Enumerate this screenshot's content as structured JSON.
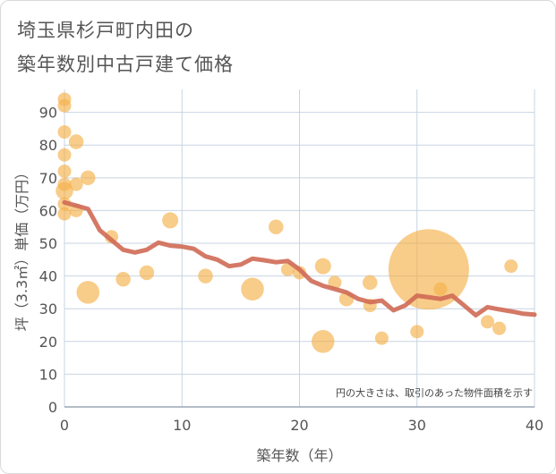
{
  "title_lines": [
    "埼玉県杉戸町内田の",
    "築年数別中古戸建て価格"
  ],
  "chart_data": {
    "type": "scatter",
    "xlabel": "築年数（年）",
    "ylabel": "坪（3.3㎡）単価（万円）",
    "xlim": [
      0,
      40
    ],
    "ylim": [
      0,
      97
    ],
    "x_ticks": [
      "0",
      "10",
      "20",
      "30",
      "40"
    ],
    "y_ticks": [
      "0",
      "10",
      "20",
      "30",
      "40",
      "50",
      "60",
      "70",
      "80",
      "90"
    ],
    "grid": true,
    "annotation": "円の大きさは、取引のあった物件面積を示す",
    "colors": {
      "points": "#f5b04a",
      "line": "#cf6a55",
      "grid": "#c8d4e2"
    },
    "points": [
      {
        "x": 0,
        "y": 94,
        "size": 1
      },
      {
        "x": 0,
        "y": 92,
        "size": 1
      },
      {
        "x": 0,
        "y": 84,
        "size": 1
      },
      {
        "x": 0,
        "y": 77,
        "size": 1
      },
      {
        "x": 0,
        "y": 72,
        "size": 1
      },
      {
        "x": 0,
        "y": 68,
        "size": 1
      },
      {
        "x": 0,
        "y": 66,
        "size": 1.3
      },
      {
        "x": 0,
        "y": 62,
        "size": 1
      },
      {
        "x": 0,
        "y": 59,
        "size": 1
      },
      {
        "x": 1,
        "y": 81,
        "size": 1.1
      },
      {
        "x": 1,
        "y": 68,
        "size": 1
      },
      {
        "x": 1,
        "y": 60,
        "size": 1
      },
      {
        "x": 2,
        "y": 70,
        "size": 1.1
      },
      {
        "x": 2,
        "y": 35,
        "size": 1.7
      },
      {
        "x": 4,
        "y": 52,
        "size": 1
      },
      {
        "x": 5,
        "y": 39,
        "size": 1.1
      },
      {
        "x": 7,
        "y": 41,
        "size": 1.1
      },
      {
        "x": 9,
        "y": 57,
        "size": 1.2
      },
      {
        "x": 12,
        "y": 40,
        "size": 1.1
      },
      {
        "x": 16,
        "y": 36,
        "size": 1.7
      },
      {
        "x": 18,
        "y": 55,
        "size": 1.1
      },
      {
        "x": 19,
        "y": 42,
        "size": 1
      },
      {
        "x": 20,
        "y": 41,
        "size": 1
      },
      {
        "x": 22,
        "y": 43,
        "size": 1.2
      },
      {
        "x": 22,
        "y": 20,
        "size": 1.7
      },
      {
        "x": 23,
        "y": 38,
        "size": 1
      },
      {
        "x": 24,
        "y": 33,
        "size": 1.1
      },
      {
        "x": 26,
        "y": 38,
        "size": 1.1
      },
      {
        "x": 26,
        "y": 31,
        "size": 1
      },
      {
        "x": 27,
        "y": 21,
        "size": 1
      },
      {
        "x": 30,
        "y": 23,
        "size": 1
      },
      {
        "x": 31,
        "y": 42,
        "size": 6
      },
      {
        "x": 32,
        "y": 36,
        "size": 1
      },
      {
        "x": 36,
        "y": 26,
        "size": 1
      },
      {
        "x": 37,
        "y": 24,
        "size": 1
      },
      {
        "x": 38,
        "y": 43,
        "size": 1
      }
    ],
    "trend_line": {
      "x": [
        0,
        1,
        2,
        3,
        4,
        5,
        6,
        7,
        8,
        9,
        10,
        11,
        12,
        13,
        14,
        15,
        16,
        17,
        18,
        19,
        20,
        21,
        22,
        23,
        24,
        25,
        26,
        27,
        28,
        29,
        30,
        31,
        32,
        33,
        34,
        35,
        36,
        37,
        38,
        39,
        40
      ],
      "y": [
        62.5,
        61.5,
        60.5,
        54,
        51,
        48,
        47.2,
        48,
        50.2,
        49.3,
        49,
        48.3,
        46,
        45,
        43,
        43.5,
        45.3,
        44.8,
        44.2,
        44.6,
        42,
        38.5,
        37,
        36,
        35,
        33,
        32,
        32.5,
        29.5,
        31,
        34,
        33.5,
        33,
        34,
        31,
        28,
        30.5,
        29.8,
        29.2,
        28.5,
        28.2
      ]
    }
  }
}
